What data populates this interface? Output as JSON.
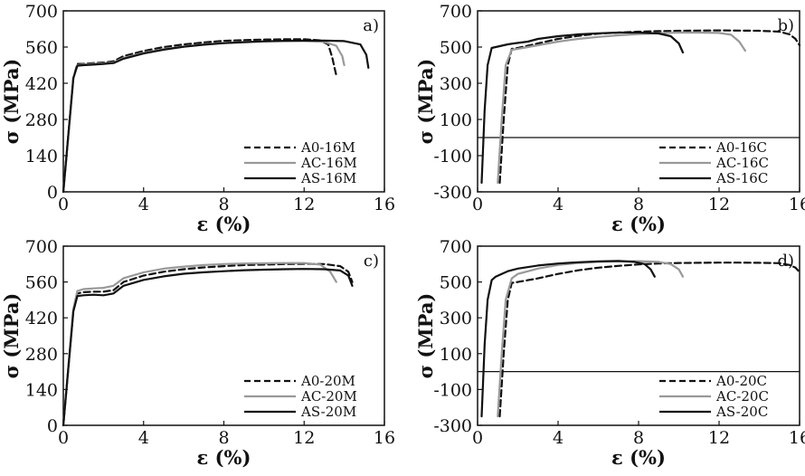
{
  "chart_data": [
    {
      "panel_label": "a)",
      "type": "line",
      "xlabel": "ε (%)",
      "ylabel": "σ (MPa)",
      "xlim": [
        0,
        16
      ],
      "ylim": [
        0,
        700
      ],
      "xticks": [
        0,
        4,
        8,
        12,
        16
      ],
      "yticks": [
        0,
        140,
        280,
        420,
        560,
        700
      ],
      "grid": false,
      "legend": "bottom-right",
      "series": [
        {
          "name": "A0-16M",
          "dash": "dashed",
          "color": "#111111",
          "x": [
            0,
            0.5,
            0.7,
            1,
            1.5,
            2,
            2.5,
            3,
            4,
            5,
            6,
            7,
            8,
            9,
            10,
            11,
            12,
            12.8,
            13.2,
            13.4,
            13.6
          ],
          "y": [
            0,
            440,
            495,
            495,
            498,
            500,
            505,
            525,
            545,
            560,
            570,
            578,
            584,
            587,
            589,
            590,
            590,
            586,
            570,
            520,
            450
          ]
        },
        {
          "name": "AC-16M",
          "dash": "solid",
          "color": "#999999",
          "x": [
            0,
            0.5,
            0.7,
            1,
            1.5,
            2,
            2.5,
            3,
            4,
            5,
            6,
            7,
            8,
            9,
            10,
            11,
            12,
            13,
            13.6,
            13.9,
            14.0
          ],
          "y": [
            0,
            440,
            490,
            492,
            495,
            497,
            500,
            518,
            538,
            552,
            562,
            570,
            576,
            580,
            582,
            583,
            583,
            580,
            565,
            525,
            490
          ]
        },
        {
          "name": "AS-16M",
          "dash": "solid",
          "color": "#111111",
          "x": [
            0,
            0.5,
            0.7,
            1,
            1.5,
            2,
            2.5,
            3,
            4,
            5,
            6,
            7,
            8,
            9,
            10,
            11,
            12,
            13,
            14,
            14.8,
            15.1,
            15.2
          ],
          "y": [
            0,
            440,
            488,
            490,
            492,
            495,
            498,
            515,
            535,
            550,
            561,
            569,
            575,
            579,
            582,
            584,
            585,
            585,
            583,
            570,
            530,
            480
          ]
        }
      ]
    },
    {
      "panel_label": "b)",
      "type": "line",
      "xlabel": "ε (%)",
      "ylabel": "σ (MPa)",
      "xlim": [
        0,
        16
      ],
      "ylim": [
        -300,
        700
      ],
      "xticks": [
        0,
        4,
        8,
        12,
        16
      ],
      "yticks": [
        -300,
        -100,
        100,
        300,
        500,
        700
      ],
      "grid": false,
      "legend": "bottom-right",
      "series": [
        {
          "name": "A0-16C",
          "dash": "dashed",
          "color": "#111111",
          "x": [
            1.1,
            1.3,
            1.5,
            1.7,
            2,
            3,
            4,
            5,
            6,
            7,
            8,
            9,
            10,
            11,
            12,
            13,
            14,
            15,
            15.5,
            15.8,
            16
          ],
          "y": [
            -250,
            100,
            400,
            490,
            495,
            520,
            545,
            562,
            574,
            580,
            585,
            588,
            590,
            591,
            592,
            591,
            590,
            585,
            570,
            545,
            510
          ]
        },
        {
          "name": "AC-16C",
          "dash": "solid",
          "color": "#999999",
          "x": [
            1.0,
            1.2,
            1.4,
            1.7,
            2,
            3,
            4,
            5,
            6,
            7,
            8,
            9,
            10,
            11,
            12,
            12.6,
            13.0,
            13.3
          ],
          "y": [
            -250,
            100,
            400,
            485,
            490,
            510,
            530,
            545,
            556,
            565,
            572,
            577,
            580,
            580,
            578,
            568,
            530,
            480
          ]
        },
        {
          "name": "AS-16C",
          "dash": "solid",
          "color": "#111111",
          "x": [
            0.2,
            0.35,
            0.5,
            0.7,
            0.9,
            1.1,
            1.3,
            1.5,
            1.8,
            2.5,
            3,
            4,
            5,
            6,
            7,
            8,
            9,
            9.6,
            10.0,
            10.2
          ],
          "y": [
            -250,
            150,
            400,
            495,
            500,
            505,
            510,
            515,
            520,
            530,
            545,
            560,
            570,
            576,
            580,
            580,
            575,
            560,
            520,
            470
          ]
        }
      ]
    },
    {
      "panel_label": "c)",
      "type": "line",
      "xlabel": "ε (%)",
      "ylabel": "σ (MPa)",
      "xlim": [
        0,
        16
      ],
      "ylim": [
        0,
        700
      ],
      "xticks": [
        0,
        4,
        8,
        12,
        16
      ],
      "yticks": [
        0,
        140,
        280,
        420,
        560,
        700
      ],
      "grid": false,
      "legend": "bottom-right",
      "series": [
        {
          "name": "A0-20M",
          "dash": "dashed",
          "color": "#111111",
          "x": [
            0,
            0.5,
            0.7,
            1,
            1.5,
            2,
            2.5,
            3,
            4,
            5,
            6,
            7,
            8,
            9,
            10,
            11,
            12,
            13,
            13.8,
            14.2,
            14.4
          ],
          "y": [
            0,
            450,
            515,
            520,
            522,
            522,
            528,
            560,
            585,
            600,
            610,
            617,
            622,
            626,
            628,
            630,
            631,
            630,
            622,
            600,
            560
          ]
        },
        {
          "name": "AC-20M",
          "dash": "solid",
          "color": "#999999",
          "x": [
            0,
            0.5,
            0.7,
            1,
            1.5,
            2,
            2.5,
            3,
            4,
            5,
            6,
            7,
            8,
            9,
            10,
            11,
            12,
            12.8,
            13.3,
            13.6
          ],
          "y": [
            0,
            455,
            525,
            532,
            535,
            537,
            545,
            575,
            598,
            612,
            620,
            626,
            630,
            632,
            633,
            634,
            634,
            628,
            600,
            560
          ]
        },
        {
          "name": "AS-20M",
          "dash": "solid",
          "color": "#111111",
          "x": [
            0,
            0.5,
            0.7,
            1,
            1.5,
            2,
            2.5,
            3,
            4,
            5,
            6,
            7,
            8,
            9,
            10,
            11,
            12,
            13,
            13.8,
            14.2,
            14.4
          ],
          "y": [
            0,
            445,
            505,
            508,
            510,
            508,
            515,
            545,
            568,
            582,
            592,
            598,
            602,
            606,
            608,
            610,
            611,
            610,
            605,
            585,
            545
          ]
        }
      ]
    },
    {
      "panel_label": "d)",
      "type": "line",
      "xlabel": "ε (%)",
      "ylabel": "σ (MPa)",
      "xlim": [
        0,
        16
      ],
      "ylim": [
        -300,
        700
      ],
      "xticks": [
        0,
        4,
        8,
        12,
        16
      ],
      "yticks": [
        -300,
        -100,
        100,
        300,
        500,
        700
      ],
      "grid": false,
      "legend": "bottom-right",
      "series": [
        {
          "name": "A0-20C",
          "dash": "dashed",
          "color": "#111111",
          "x": [
            1.1,
            1.3,
            1.5,
            1.7,
            2,
            3,
            4,
            5,
            6,
            7,
            8,
            9,
            10,
            11,
            12,
            13,
            14,
            15,
            15.5,
            15.8,
            16
          ],
          "y": [
            -250,
            100,
            400,
            495,
            500,
            520,
            545,
            565,
            580,
            590,
            598,
            603,
            606,
            607,
            608,
            608,
            607,
            605,
            595,
            580,
            555
          ]
        },
        {
          "name": "AC-20C",
          "dash": "solid",
          "color": "#999999",
          "x": [
            1.0,
            1.2,
            1.4,
            1.7,
            2,
            3,
            4,
            5,
            6,
            7,
            8,
            9,
            9.6,
            10.0,
            10.2
          ],
          "y": [
            -250,
            100,
            400,
            520,
            545,
            575,
            595,
            606,
            612,
            615,
            616,
            612,
            600,
            570,
            530
          ]
        },
        {
          "name": "AS-20C",
          "dash": "solid",
          "color": "#111111",
          "x": [
            0.2,
            0.35,
            0.5,
            0.7,
            0.9,
            1.2,
            1.5,
            2,
            3,
            4,
            5,
            6,
            7,
            7.8,
            8.3,
            8.6,
            8.8
          ],
          "y": [
            -250,
            150,
            400,
            510,
            530,
            545,
            560,
            575,
            592,
            603,
            610,
            615,
            617,
            612,
            600,
            570,
            530
          ]
        }
      ]
    }
  ]
}
